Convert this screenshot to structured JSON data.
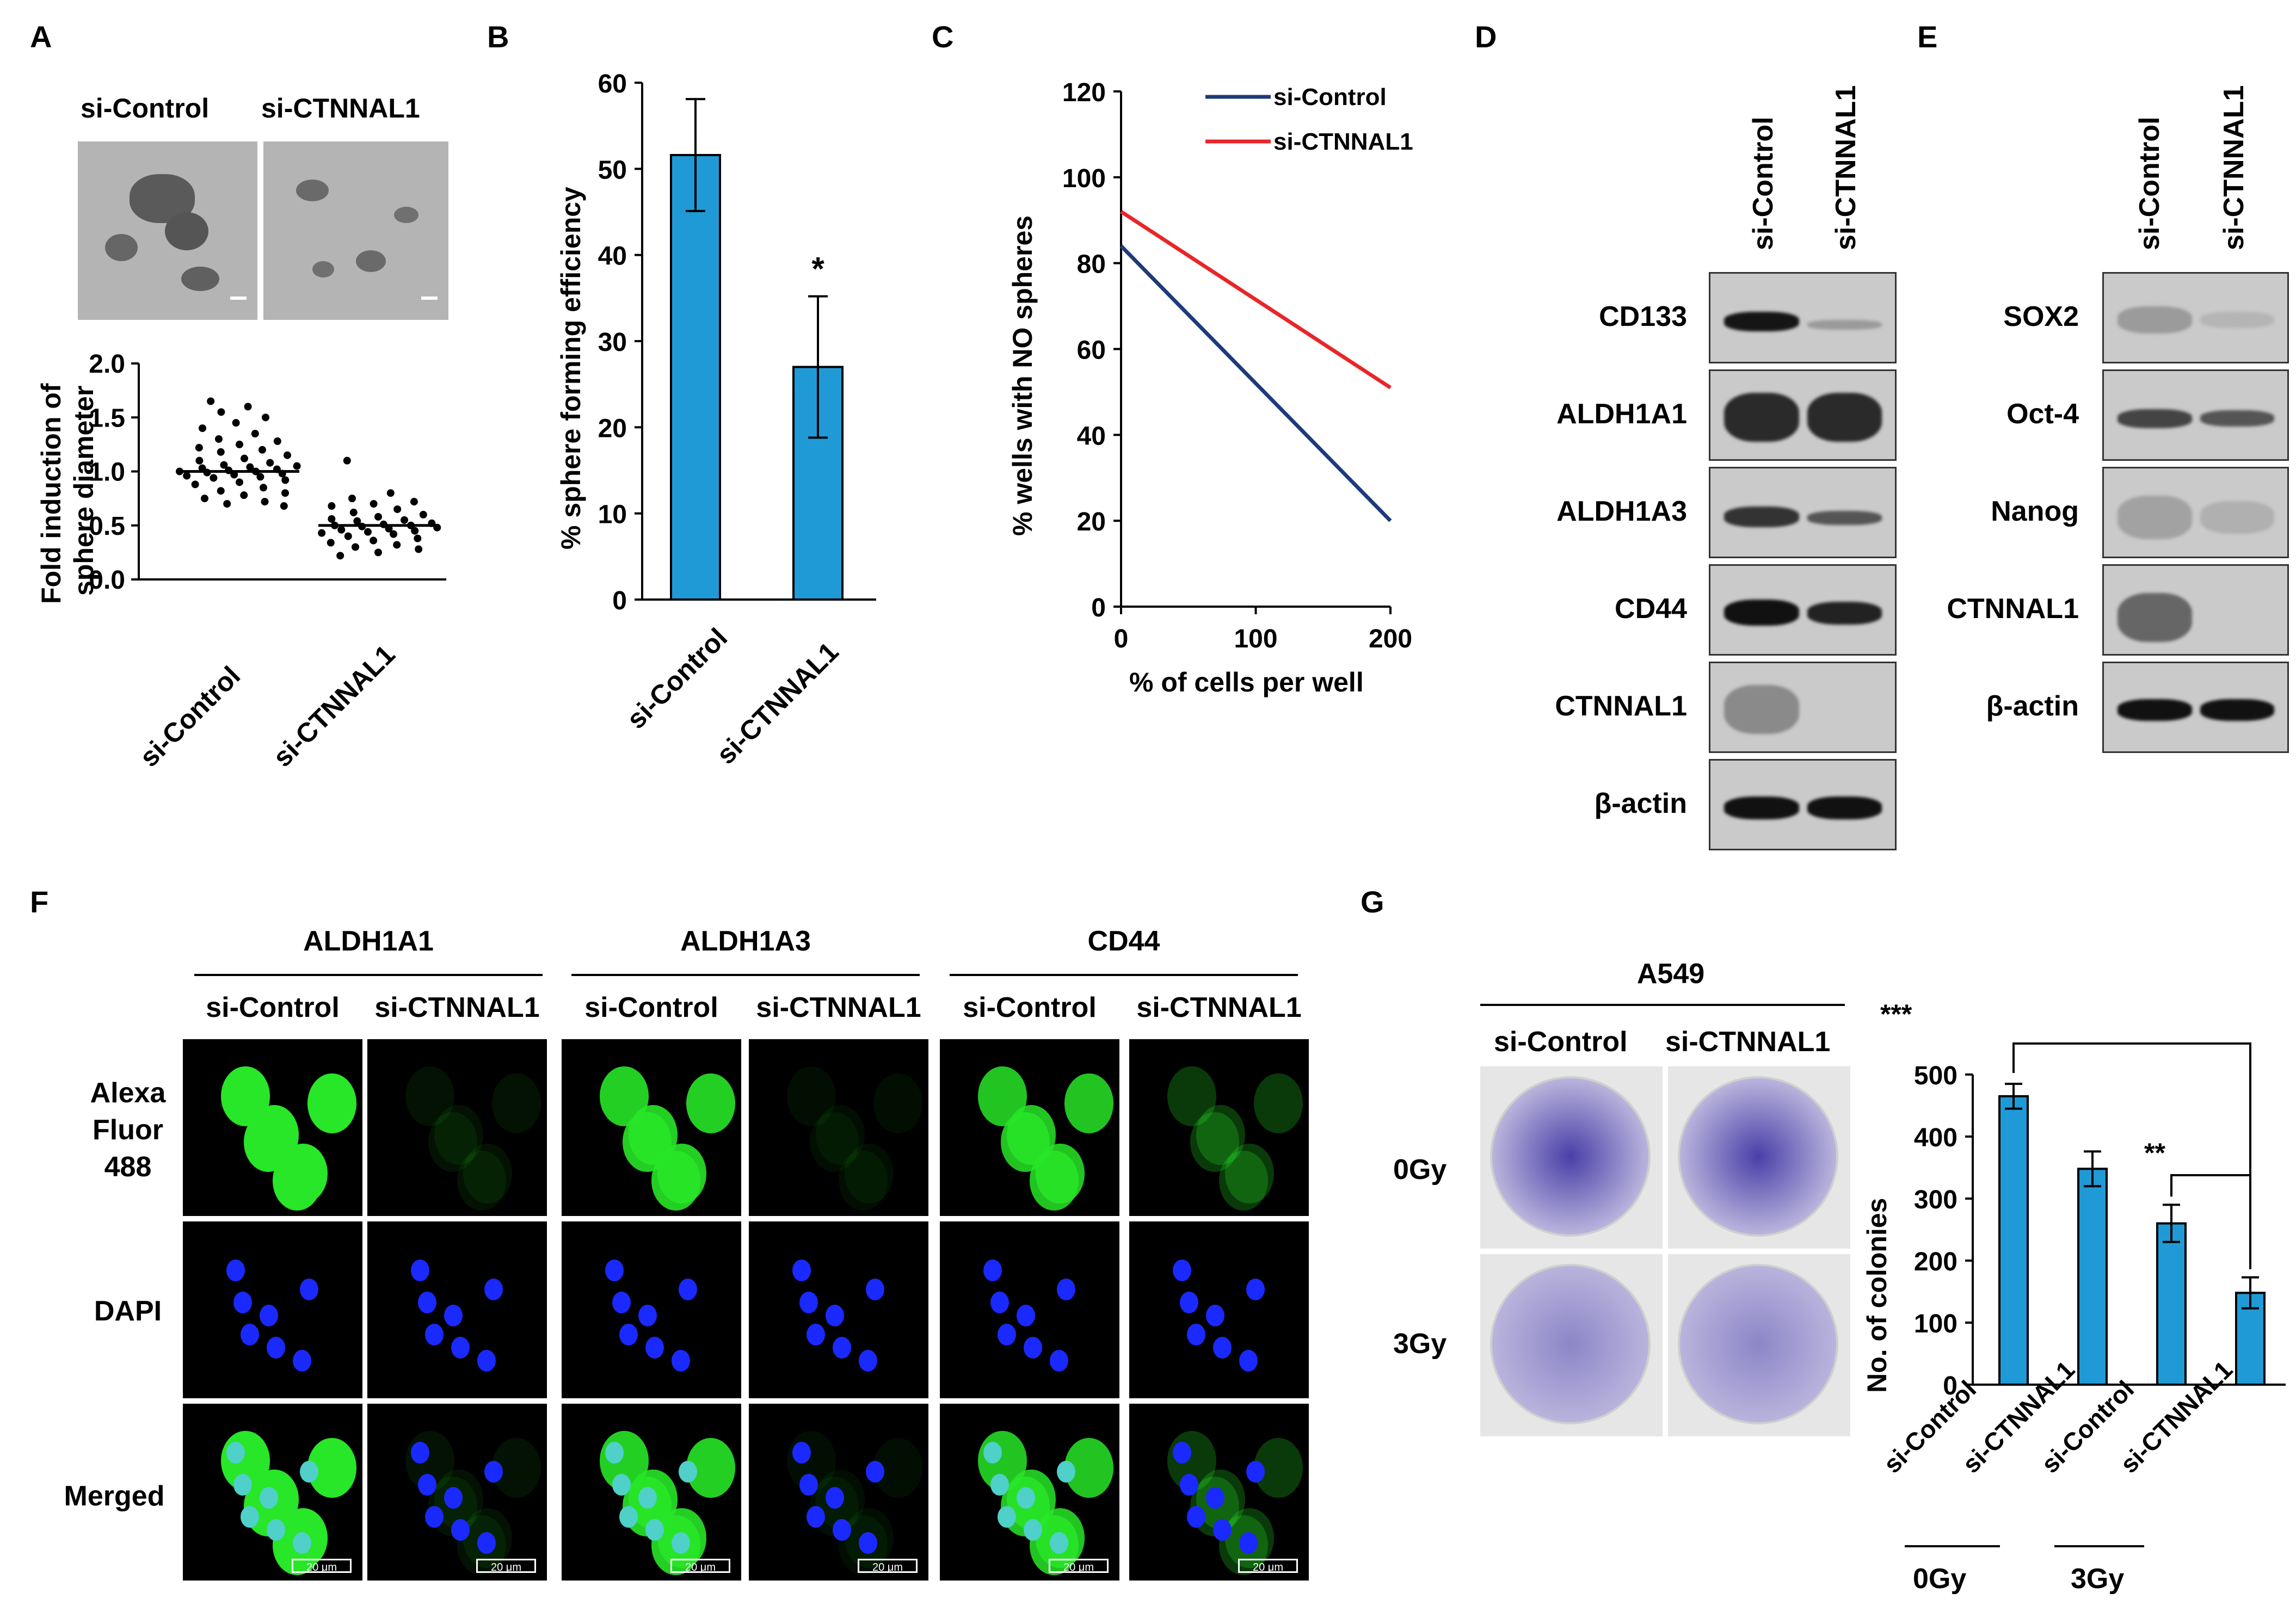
{
  "panels": {
    "A": "A",
    "B": "B",
    "C": "C",
    "D": "D",
    "E": "E",
    "F": "F",
    "G": "G"
  },
  "panelA": {
    "images": [
      "si-Control",
      "si-CTNNAL1"
    ],
    "ylabel_line1": "Fold induction of",
    "ylabel_line2": "sphere diameter",
    "yticks": [
      "2.0",
      "1.5",
      "1.0",
      "0.5",
      "0.0"
    ],
    "xcats": [
      "si-Control",
      "si-CTNNAL1"
    ]
  },
  "panelD": {
    "lanes": [
      "si-Control",
      "si-CTNNAL1"
    ],
    "rows": [
      "CD133",
      "ALDH1A1",
      "ALDH1A3",
      "CD44",
      "CTNNAL1",
      "β-actin"
    ]
  },
  "panelE": {
    "lanes": [
      "si-Control",
      "si-CTNNAL1"
    ],
    "rows": [
      "SOX2",
      "Oct-4",
      "Nanog",
      "CTNNAL1",
      "β-actin"
    ]
  },
  "panelF": {
    "groups": [
      "ALDH1A1",
      "ALDH1A3",
      "CD44"
    ],
    "conds": [
      "si-Control",
      "si-CTNNAL1",
      "si-Control",
      "si-CTNNAL1",
      "si-Control",
      "si-CTNNAL1"
    ],
    "rows": [
      "Alexa",
      "Fluor",
      "488",
      "DAPI",
      "Merged"
    ],
    "scale": "20 μm"
  },
  "panelG": {
    "cell_line": "A549",
    "conds": [
      "si-Control",
      "si-CTNNAL1"
    ],
    "doses": [
      "0Gy",
      "3Gy"
    ],
    "sig1": "***",
    "sig2": "**"
  },
  "chart_data": [
    {
      "type": "scatter",
      "panel": "A",
      "ylabel": "Fold induction of sphere diameter",
      "ylim": [
        0,
        2.0
      ],
      "categories": [
        "si-Control",
        "si-CTNNAL1"
      ],
      "series": [
        {
          "name": "si-Control",
          "values": [
            1.65,
            1.6,
            1.55,
            1.5,
            1.45,
            1.4,
            1.35,
            1.3,
            1.28,
            1.25,
            1.22,
            1.2,
            1.18,
            1.15,
            1.12,
            1.1,
            1.08,
            1.06,
            1.05,
            1.04,
            1.03,
            1.02,
            1.01,
            1.0,
            1.0,
            0.99,
            0.98,
            0.97,
            0.96,
            0.95,
            0.94,
            0.92,
            0.9,
            0.88,
            0.85,
            0.82,
            0.8,
            0.78,
            0.75,
            0.72,
            0.7,
            0.68
          ]
        },
        {
          "name": "si-CTNNAL1",
          "values": [
            1.1,
            0.8,
            0.75,
            0.72,
            0.7,
            0.68,
            0.65,
            0.62,
            0.6,
            0.58,
            0.56,
            0.55,
            0.54,
            0.52,
            0.51,
            0.5,
            0.5,
            0.49,
            0.48,
            0.47,
            0.46,
            0.45,
            0.44,
            0.43,
            0.42,
            0.4,
            0.38,
            0.36,
            0.34,
            0.32,
            0.3,
            0.28,
            0.25,
            0.22
          ]
        }
      ]
    },
    {
      "type": "bar",
      "panel": "B",
      "ylabel": "% sphere forming efficiency",
      "ylim": [
        0,
        60
      ],
      "yticks": [
        0,
        10,
        20,
        30,
        40,
        50,
        60
      ],
      "categories": [
        "si-Control",
        "si-CTNNAL1"
      ],
      "values": [
        51.6,
        27.0
      ],
      "errors": [
        6.5,
        8.2
      ],
      "annotation": "*"
    },
    {
      "type": "line",
      "panel": "C",
      "xlabel": "% of cells per well",
      "ylabel": "% wells with NO spheres",
      "xlim": [
        0,
        200
      ],
      "ylim": [
        0,
        120
      ],
      "xticks": [
        0,
        100,
        200
      ],
      "yticks": [
        0,
        20,
        40,
        60,
        80,
        100,
        120
      ],
      "legend": "top-right",
      "series": [
        {
          "name": "si-Control",
          "color": "#1f3a7a",
          "x": [
            0,
            200
          ],
          "y": [
            84,
            20
          ]
        },
        {
          "name": "si-CTNNAL1",
          "color": "#e8262a",
          "x": [
            0,
            200
          ],
          "y": [
            92,
            51
          ]
        }
      ]
    },
    {
      "type": "bar",
      "panel": "G",
      "ylabel": "No. of colonies",
      "ylim": [
        0,
        500
      ],
      "yticks": [
        0,
        100,
        200,
        300,
        400,
        500
      ],
      "categories": [
        "si-Control",
        "si-CTNNAL1",
        "si-Control",
        "si-CTNNAL1"
      ],
      "groups": [
        "0Gy",
        "0Gy",
        "3Gy",
        "3Gy"
      ],
      "values": [
        465,
        348,
        260,
        148
      ],
      "errors": [
        20,
        28,
        30,
        25
      ]
    }
  ]
}
